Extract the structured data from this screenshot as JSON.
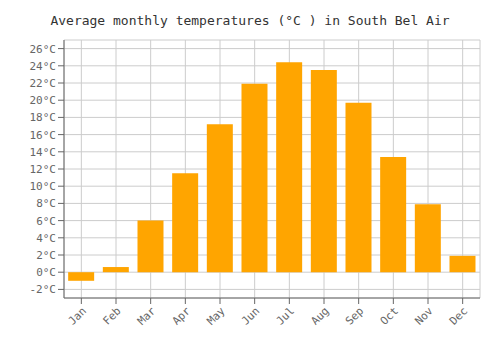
{
  "chart_data": {
    "type": "bar",
    "title": "Average monthly temperatures (°C ) in South Bel Air",
    "categories": [
      "Jan",
      "Feb",
      "Mar",
      "Apr",
      "May",
      "Jun",
      "Jul",
      "Aug",
      "Sep",
      "Oct",
      "Nov",
      "Dec"
    ],
    "values": [
      -1.0,
      0.6,
      6.0,
      11.5,
      17.2,
      21.9,
      24.4,
      23.5,
      19.7,
      13.4,
      7.9,
      1.9
    ],
    "color": "#FFA500",
    "ylim": [
      -3,
      27
    ],
    "yticks": [
      {
        "value": -2,
        "label": "-2°C"
      },
      {
        "value": 0,
        "label": "0°C"
      },
      {
        "value": 2,
        "label": "2°C"
      },
      {
        "value": 4,
        "label": "4°C"
      },
      {
        "value": 6,
        "label": "6°C"
      },
      {
        "value": 8,
        "label": "8°C"
      },
      {
        "value": 10,
        "label": "10°C"
      },
      {
        "value": 12,
        "label": "12°C"
      },
      {
        "value": 14,
        "label": "14°C"
      },
      {
        "value": 16,
        "label": "16°C"
      },
      {
        "value": 18,
        "label": "18°C"
      },
      {
        "value": 20,
        "label": "20°C"
      },
      {
        "value": 22,
        "label": "22°C"
      },
      {
        "value": 24,
        "label": "24°C"
      },
      {
        "value": 26,
        "label": "26°C"
      }
    ],
    "grid": true
  }
}
